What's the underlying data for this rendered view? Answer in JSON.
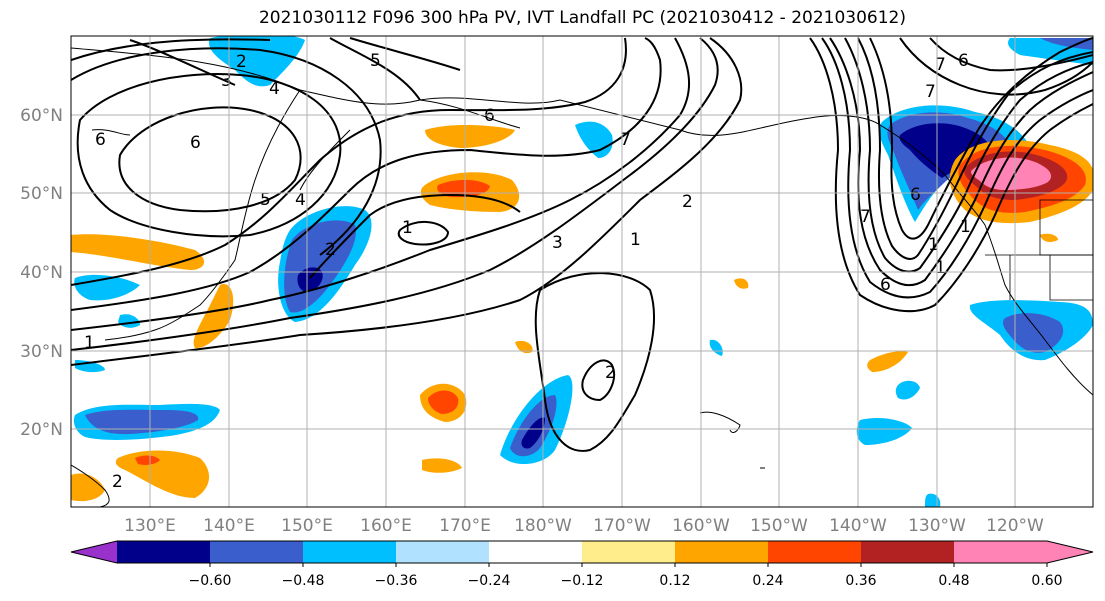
{
  "title": "2021030112 F096 300 hPa PV, IVT Landfall PC (2021030412 - 2021030612)",
  "map": {
    "lat_ticks": [
      "60°N",
      "50°N",
      "40°N",
      "30°N",
      "20°N"
    ],
    "lon_ticks": [
      "130°E",
      "140°E",
      "150°E",
      "160°E",
      "170°E",
      "180°W",
      "170°W",
      "160°W",
      "150°W",
      "140°W",
      "130°W",
      "120°W"
    ],
    "pv_contour_labels": [
      "2",
      "3",
      "4",
      "5",
      "6",
      "6",
      "5",
      "4",
      "1",
      "2",
      "3",
      "2",
      "1",
      "7",
      "2",
      "1",
      "2",
      "7",
      "7",
      "7",
      "6",
      "1",
      "1",
      "6",
      "6",
      "6",
      "1"
    ],
    "colors": {
      "gridline": "#b0b0b0",
      "contour": "#000000",
      "coast": "#000000",
      "tick_label": "#808080"
    }
  },
  "colorbar": {
    "tick_labels": [
      "−0.60",
      "−0.48",
      "−0.36",
      "−0.24",
      "−0.12",
      "0.12",
      "0.24",
      "0.36",
      "0.48",
      "0.60"
    ],
    "bins": [
      {
        "color": "#9932cc"
      },
      {
        "color": "#00008b"
      },
      {
        "color": "#3a5fcd"
      },
      {
        "color": "#00bfff"
      },
      {
        "color": "#b0e2ff"
      },
      {
        "color": "#ffffff"
      },
      {
        "color": "#ffec8b"
      },
      {
        "color": "#ffa500"
      },
      {
        "color": "#ff4500"
      },
      {
        "color": "#b22222"
      },
      {
        "color": "#ff83b5"
      },
      {
        "color": "#ff83b5"
      }
    ]
  }
}
